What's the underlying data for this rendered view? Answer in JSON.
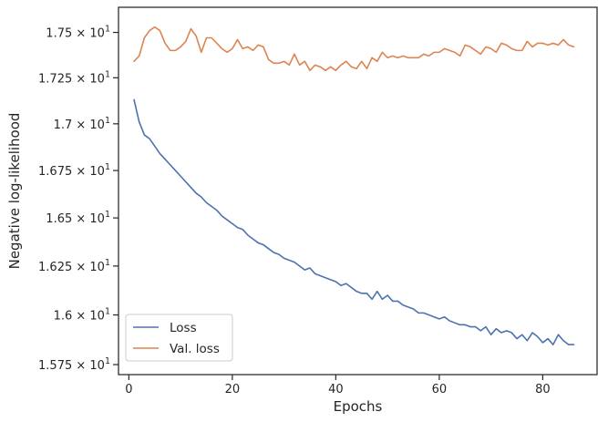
{
  "chart_data": {
    "type": "line",
    "xlabel": "Epochs",
    "ylabel": "Negative log-likelihood",
    "y_scale": "log",
    "xlim": [
      -2,
      90.5
    ],
    "ylim": [
      15.7,
      17.64
    ],
    "grid": false,
    "legend_placement": "lower-left",
    "x_ticks": [
      {
        "value": 0,
        "label": "0"
      },
      {
        "value": 20,
        "label": "20"
      },
      {
        "value": 40,
        "label": "40"
      },
      {
        "value": 60,
        "label": "60"
      },
      {
        "value": 80,
        "label": "80"
      }
    ],
    "y_ticks": [
      {
        "value": 15.75,
        "mantissa": "1.575"
      },
      {
        "value": 16.0,
        "mantissa": "1.6"
      },
      {
        "value": 16.25,
        "mantissa": "1.625"
      },
      {
        "value": 16.5,
        "mantissa": "1.65"
      },
      {
        "value": 16.75,
        "mantissa": "1.675"
      },
      {
        "value": 17.0,
        "mantissa": "1.7"
      },
      {
        "value": 17.25,
        "mantissa": "1.725"
      },
      {
        "value": 17.5,
        "mantissa": "1.75"
      }
    ],
    "y_tick_multiplier": "× 10",
    "y_tick_exponent": "1",
    "x": [
      1,
      2,
      3,
      4,
      5,
      6,
      7,
      8,
      9,
      10,
      11,
      12,
      13,
      14,
      15,
      16,
      17,
      18,
      19,
      20,
      21,
      22,
      23,
      24,
      25,
      26,
      27,
      28,
      29,
      30,
      31,
      32,
      33,
      34,
      35,
      36,
      37,
      38,
      39,
      40,
      41,
      42,
      43,
      44,
      45,
      46,
      47,
      48,
      49,
      50,
      51,
      52,
      53,
      54,
      55,
      56,
      57,
      58,
      59,
      60,
      61,
      62,
      63,
      64,
      65,
      66,
      67,
      68,
      69,
      70,
      71,
      72,
      73,
      74,
      75,
      76,
      77,
      78,
      79,
      80,
      81,
      82,
      83,
      84,
      85,
      86
    ],
    "series": [
      {
        "name": "Loss",
        "color": "#4c72b0",
        "values": [
          17.13,
          17.01,
          16.94,
          16.92,
          16.88,
          16.84,
          16.81,
          16.78,
          16.75,
          16.72,
          16.69,
          16.66,
          16.63,
          16.61,
          16.58,
          16.56,
          16.54,
          16.51,
          16.49,
          16.47,
          16.45,
          16.44,
          16.41,
          16.39,
          16.37,
          16.36,
          16.34,
          16.32,
          16.31,
          16.29,
          16.28,
          16.27,
          16.25,
          16.23,
          16.24,
          16.21,
          16.2,
          16.19,
          16.18,
          16.17,
          16.15,
          16.16,
          16.14,
          16.12,
          16.11,
          16.11,
          16.08,
          16.12,
          16.08,
          16.1,
          16.07,
          16.07,
          16.05,
          16.04,
          16.03,
          16.01,
          16.01,
          16.0,
          15.99,
          15.98,
          15.99,
          15.97,
          15.96,
          15.95,
          15.95,
          15.94,
          15.94,
          15.92,
          15.94,
          15.9,
          15.93,
          15.91,
          15.92,
          15.91,
          15.88,
          15.9,
          15.87,
          15.91,
          15.89,
          15.86,
          15.88,
          15.85,
          15.9,
          15.87,
          15.85,
          15.85
        ]
      },
      {
        "name": "Val. loss",
        "color": "#dd8452",
        "values": [
          17.34,
          17.37,
          17.47,
          17.51,
          17.53,
          17.51,
          17.44,
          17.4,
          17.4,
          17.42,
          17.45,
          17.52,
          17.48,
          17.39,
          17.47,
          17.47,
          17.44,
          17.41,
          17.39,
          17.41,
          17.46,
          17.41,
          17.42,
          17.4,
          17.43,
          17.42,
          17.35,
          17.33,
          17.33,
          17.34,
          17.32,
          17.38,
          17.32,
          17.34,
          17.29,
          17.32,
          17.31,
          17.29,
          17.31,
          17.29,
          17.32,
          17.34,
          17.31,
          17.3,
          17.34,
          17.3,
          17.36,
          17.34,
          17.39,
          17.36,
          17.37,
          17.36,
          17.37,
          17.36,
          17.36,
          17.36,
          17.38,
          17.37,
          17.39,
          17.39,
          17.41,
          17.4,
          17.39,
          17.37,
          17.43,
          17.42,
          17.4,
          17.38,
          17.42,
          17.41,
          17.39,
          17.44,
          17.43,
          17.41,
          17.4,
          17.4,
          17.45,
          17.42,
          17.44,
          17.44,
          17.43,
          17.44,
          17.43,
          17.46,
          17.43,
          17.42
        ]
      }
    ]
  }
}
